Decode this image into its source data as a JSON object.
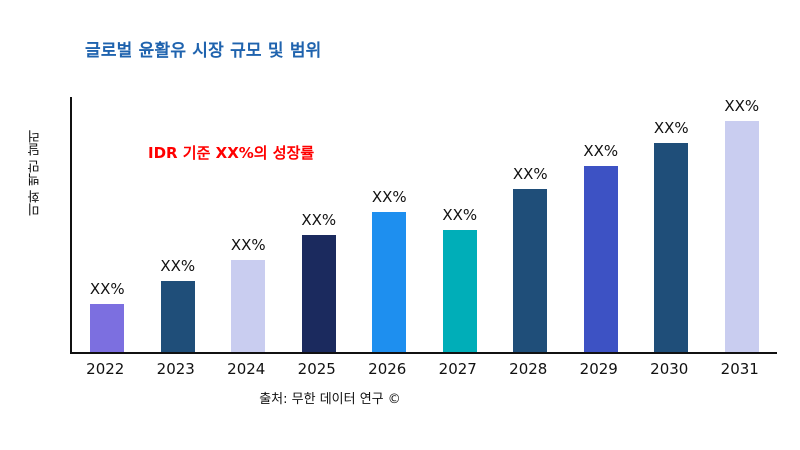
{
  "page": {
    "title_color": "#1F63AE",
    "annotation_color": "#FF0000",
    "axis_color": "#111111"
  },
  "chart_data": {
    "type": "bar",
    "title": "글로벌 윤활유 시장 규모 및 범위",
    "annotation": "IDR 기준 XX%의 성장률",
    "xlabel": "",
    "ylabel": "미화 백만 달러",
    "source": "출처: 무한 데이터 연구 ©",
    "categories": [
      "2022",
      "2023",
      "2024",
      "2025",
      "2026",
      "2027",
      "2028",
      "2029",
      "2030",
      "2031"
    ],
    "values": [
      19,
      28,
      36,
      46,
      55,
      48,
      64,
      73,
      82,
      91
    ],
    "bar_labels": [
      "XX%",
      "XX%",
      "XX%",
      "XX%",
      "XX%",
      "XX%",
      "XX%",
      "XX%",
      "XX%",
      "XX%"
    ],
    "colors": [
      "#7C6FE0",
      "#1F4E79",
      "#C9CDF0",
      "#1B2A5E",
      "#1E8FEF",
      "#00AEB8",
      "#1F4E79",
      "#3D52C4",
      "#1F4E79",
      "#C9CDF0"
    ],
    "ylim": [
      0,
      100
    ],
    "grid": false,
    "legend": false
  }
}
